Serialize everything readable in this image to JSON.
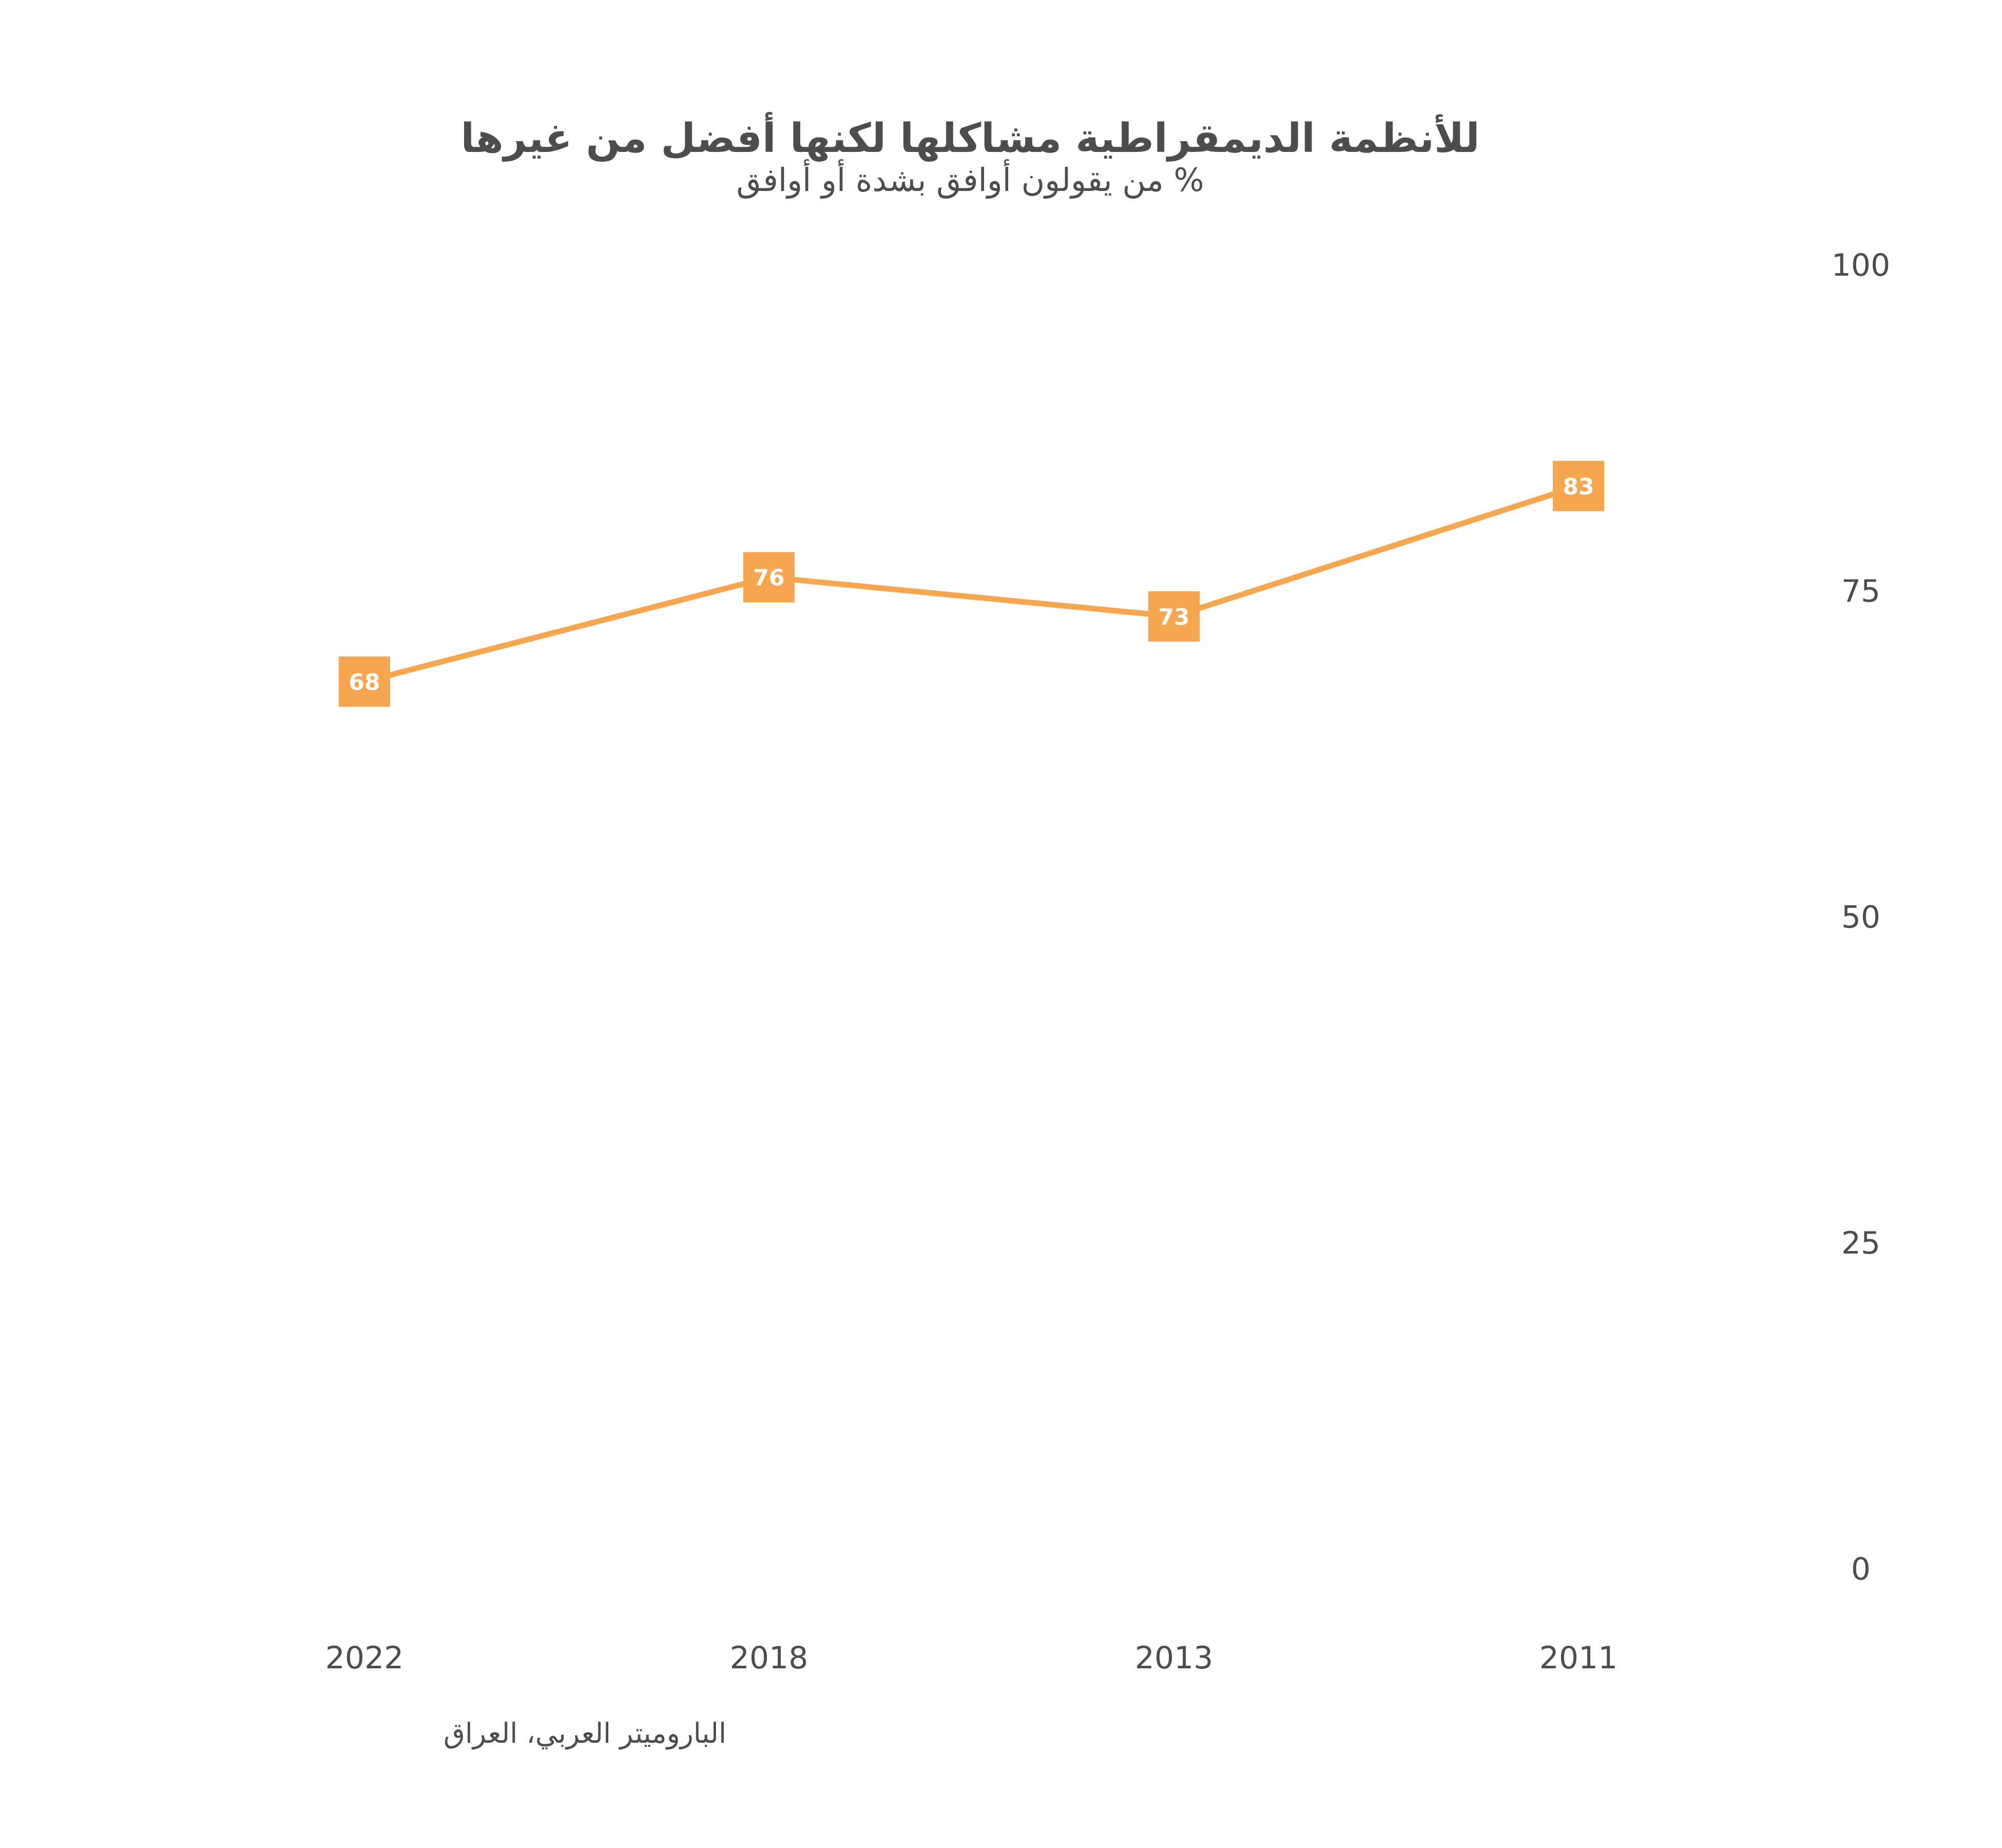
{
  "chart_data": {
    "type": "line",
    "title": "للأنظمة الديمقراطية مشاكلها لكنها أفضل من غيرها",
    "subtitle": "% من يقولون أوافق بشدة أو أوافق",
    "categories": [
      "2022",
      "2018",
      "2013",
      "2011"
    ],
    "series": [
      {
        "values": [
          68,
          76,
          73,
          83
        ],
        "color": "#f5a64e"
      }
    ],
    "ylim": [
      0,
      100
    ],
    "yticks": [
      0,
      25,
      50,
      75,
      100
    ],
    "y_axis_side": "right",
    "grid": false,
    "legend": "none",
    "source": "الباروميتر العربي، العراق"
  },
  "colors": {
    "line": "#f5a64e",
    "label_box": "#f5a64e",
    "label_text": "#ffffff",
    "text": "#4d4d4d",
    "background": "#ffffff"
  }
}
